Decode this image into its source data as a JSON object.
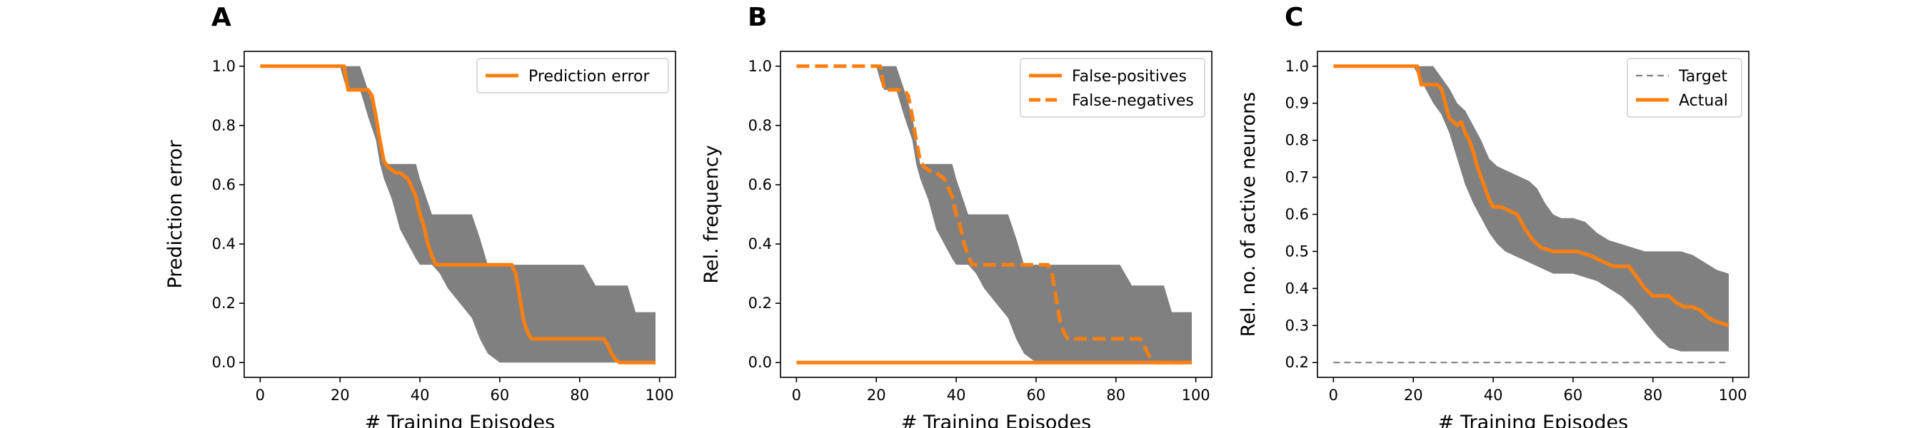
{
  "colors": {
    "actual": "#ff7f0e",
    "band": "#808080",
    "target": "#808080",
    "axes": "#000000",
    "legend_border": "#cccccc"
  },
  "chart_data": [
    {
      "panel": "A",
      "type": "line",
      "xlabel": "# Training Episodes",
      "ylabel": "Prediction error",
      "xlim": [
        -4,
        104
      ],
      "ylim": [
        -0.05,
        1.05
      ],
      "xticks": [
        0,
        20,
        40,
        60,
        80,
        100
      ],
      "yticks": [
        0.0,
        0.2,
        0.4,
        0.6,
        0.8,
        1.0
      ],
      "ytick_labels": [
        "0.0",
        "0.2",
        "0.4",
        "0.6",
        "0.8",
        "1.0"
      ],
      "grid": false,
      "legend_position": "upper right",
      "legend": [
        {
          "label": "Prediction error",
          "style": "solid",
          "color": "#ff7f0e"
        }
      ],
      "band": {
        "x": [
          0,
          20,
          21,
          22,
          25,
          27,
          29,
          30,
          31,
          33,
          35,
          37,
          39,
          40,
          41,
          43,
          45,
          47,
          50,
          53,
          55,
          57,
          60,
          62,
          64,
          66,
          68,
          70,
          72,
          75,
          78,
          81,
          84,
          86,
          88,
          90,
          92,
          94,
          96,
          98,
          99
        ],
        "upper": [
          1.0,
          1.0,
          1.0,
          1.0,
          1.0,
          0.92,
          0.83,
          0.75,
          0.67,
          0.67,
          0.67,
          0.67,
          0.67,
          0.62,
          0.58,
          0.5,
          0.5,
          0.5,
          0.5,
          0.5,
          0.42,
          0.33,
          0.33,
          0.33,
          0.33,
          0.33,
          0.33,
          0.33,
          0.33,
          0.33,
          0.33,
          0.33,
          0.26,
          0.26,
          0.26,
          0.26,
          0.26,
          0.17,
          0.17,
          0.17,
          0.17
        ],
        "lower": [
          1.0,
          1.0,
          0.95,
          0.92,
          0.92,
          0.83,
          0.75,
          0.67,
          0.62,
          0.55,
          0.45,
          0.4,
          0.35,
          0.33,
          0.33,
          0.33,
          0.3,
          0.25,
          0.2,
          0.15,
          0.08,
          0.03,
          0.0,
          0.0,
          0.0,
          0.0,
          0.0,
          0.0,
          0.0,
          0.0,
          0.0,
          0.0,
          0.0,
          0.0,
          0.0,
          0.0,
          0.0,
          0.0,
          0.0,
          0.0,
          0.0
        ]
      },
      "series": [
        {
          "name": "Prediction error",
          "style": "solid",
          "x": [
            0,
            21,
            22,
            27,
            28,
            29,
            30,
            31,
            32,
            34,
            35,
            37,
            39,
            40,
            41,
            42,
            43,
            44,
            45,
            50,
            60,
            63,
            64,
            65,
            66,
            67,
            68,
            70,
            75,
            80,
            86,
            87,
            88,
            89,
            90,
            95,
            99
          ],
          "y": [
            1.0,
            1.0,
            0.92,
            0.92,
            0.9,
            0.83,
            0.75,
            0.68,
            0.66,
            0.64,
            0.64,
            0.62,
            0.56,
            0.5,
            0.46,
            0.4,
            0.36,
            0.33,
            0.33,
            0.33,
            0.33,
            0.33,
            0.3,
            0.22,
            0.14,
            0.1,
            0.08,
            0.08,
            0.08,
            0.08,
            0.08,
            0.06,
            0.03,
            0.01,
            0.0,
            0.0,
            0.0
          ]
        }
      ]
    },
    {
      "panel": "B",
      "type": "line",
      "xlabel": "# Training Episodes",
      "ylabel": "Rel. frequency",
      "xlim": [
        -4,
        104
      ],
      "ylim": [
        -0.05,
        1.05
      ],
      "xticks": [
        0,
        20,
        40,
        60,
        80,
        100
      ],
      "yticks": [
        0.0,
        0.2,
        0.4,
        0.6,
        0.8,
        1.0
      ],
      "ytick_labels": [
        "0.0",
        "0.2",
        "0.4",
        "0.6",
        "0.8",
        "1.0"
      ],
      "grid": false,
      "legend_position": "upper right",
      "legend": [
        {
          "label": "False-positives",
          "style": "solid",
          "color": "#ff7f0e"
        },
        {
          "label": "False-negatives",
          "style": "dashed",
          "color": "#ff7f0e"
        }
      ],
      "band": {
        "x": [
          0,
          20,
          21,
          22,
          25,
          27,
          29,
          30,
          31,
          33,
          35,
          37,
          39,
          40,
          41,
          43,
          45,
          47,
          50,
          53,
          55,
          57,
          60,
          62,
          64,
          66,
          68,
          70,
          72,
          75,
          78,
          81,
          84,
          86,
          88,
          90,
          92,
          94,
          96,
          98,
          99
        ],
        "upper": [
          1.0,
          1.0,
          1.0,
          1.0,
          1.0,
          0.92,
          0.83,
          0.75,
          0.67,
          0.67,
          0.67,
          0.67,
          0.67,
          0.62,
          0.58,
          0.5,
          0.5,
          0.5,
          0.5,
          0.5,
          0.42,
          0.33,
          0.33,
          0.33,
          0.33,
          0.33,
          0.33,
          0.33,
          0.33,
          0.33,
          0.33,
          0.33,
          0.26,
          0.26,
          0.26,
          0.26,
          0.26,
          0.17,
          0.17,
          0.17,
          0.17
        ],
        "lower": [
          1.0,
          1.0,
          0.95,
          0.92,
          0.92,
          0.83,
          0.75,
          0.67,
          0.62,
          0.55,
          0.45,
          0.4,
          0.35,
          0.33,
          0.33,
          0.33,
          0.3,
          0.25,
          0.2,
          0.15,
          0.08,
          0.03,
          0.0,
          0.0,
          0.0,
          0.0,
          0.0,
          0.0,
          0.0,
          0.0,
          0.0,
          0.0,
          0.0,
          0.0,
          0.0,
          0.0,
          0.0,
          0.0,
          0.0,
          0.0,
          0.0
        ]
      },
      "series": [
        {
          "name": "False-positives",
          "style": "solid",
          "x": [
            0,
            99
          ],
          "y": [
            0.0,
            0.0
          ]
        },
        {
          "name": "False-negatives",
          "style": "dashed",
          "x": [
            0,
            21,
            22,
            27,
            28,
            29,
            30,
            31,
            32,
            34,
            35,
            37,
            39,
            40,
            41,
            42,
            43,
            44,
            45,
            50,
            60,
            63,
            64,
            65,
            66,
            67,
            68,
            70,
            75,
            80,
            86,
            87,
            88,
            89,
            90,
            95,
            99
          ],
          "y": [
            1.0,
            1.0,
            0.92,
            0.92,
            0.9,
            0.83,
            0.75,
            0.68,
            0.66,
            0.64,
            0.64,
            0.62,
            0.56,
            0.5,
            0.46,
            0.4,
            0.36,
            0.33,
            0.33,
            0.33,
            0.33,
            0.33,
            0.3,
            0.22,
            0.14,
            0.1,
            0.08,
            0.08,
            0.08,
            0.08,
            0.08,
            0.06,
            0.03,
            0.01,
            0.0,
            0.0,
            0.0
          ]
        }
      ]
    },
    {
      "panel": "C",
      "type": "line",
      "xlabel": "# Training Episodes",
      "ylabel": "Rel. no. of active neurons",
      "xlim": [
        -4,
        104
      ],
      "ylim": [
        0.16,
        1.04
      ],
      "xticks": [
        0,
        20,
        40,
        60,
        80,
        100
      ],
      "yticks": [
        0.2,
        0.3,
        0.4,
        0.5,
        0.6,
        0.7,
        0.8,
        0.9,
        1.0
      ],
      "ytick_labels": [
        "0.2",
        "0.3",
        "0.4",
        "0.5",
        "0.6",
        "0.7",
        "0.8",
        "0.9",
        "1.0"
      ],
      "grid": false,
      "legend_position": "upper right",
      "legend": [
        {
          "label": "Target",
          "style": "dashed",
          "color": "#808080"
        },
        {
          "label": "Actual",
          "style": "solid",
          "color": "#ff7f0e"
        }
      ],
      "band": {
        "x": [
          0,
          20,
          22,
          25,
          27,
          29,
          31,
          33,
          35,
          37,
          39,
          41,
          43,
          45,
          47,
          49,
          51,
          53,
          55,
          57,
          60,
          63,
          66,
          69,
          72,
          75,
          78,
          81,
          84,
          87,
          90,
          93,
          96,
          99
        ],
        "upper": [
          1.0,
          1.0,
          1.0,
          1.0,
          0.97,
          0.94,
          0.9,
          0.88,
          0.84,
          0.8,
          0.75,
          0.73,
          0.72,
          0.71,
          0.7,
          0.69,
          0.67,
          0.63,
          0.6,
          0.59,
          0.59,
          0.58,
          0.55,
          0.53,
          0.52,
          0.51,
          0.5,
          0.5,
          0.5,
          0.5,
          0.49,
          0.47,
          0.45,
          0.44
        ],
        "lower": [
          1.0,
          1.0,
          0.96,
          0.9,
          0.87,
          0.82,
          0.75,
          0.68,
          0.63,
          0.59,
          0.55,
          0.52,
          0.5,
          0.49,
          0.48,
          0.47,
          0.46,
          0.45,
          0.44,
          0.44,
          0.44,
          0.43,
          0.42,
          0.4,
          0.38,
          0.35,
          0.31,
          0.27,
          0.24,
          0.23,
          0.23,
          0.23,
          0.23,
          0.23
        ]
      },
      "series": [
        {
          "name": "Target",
          "style": "dashed",
          "x": [
            0,
            99
          ],
          "y": [
            0.2,
            0.2
          ]
        },
        {
          "name": "Actual",
          "style": "solid",
          "x": [
            0,
            21,
            22,
            24,
            26,
            27,
            28,
            29,
            30,
            31,
            32,
            33,
            34,
            35,
            36,
            37,
            38,
            39,
            40,
            42,
            44,
            46,
            48,
            50,
            52,
            55,
            58,
            61,
            64,
            66,
            68,
            70,
            72,
            74,
            76,
            78,
            80,
            82,
            84,
            86,
            88,
            90,
            92,
            94,
            96,
            99
          ],
          "y": [
            1.0,
            1.0,
            0.95,
            0.95,
            0.95,
            0.94,
            0.9,
            0.86,
            0.85,
            0.84,
            0.85,
            0.82,
            0.8,
            0.77,
            0.73,
            0.7,
            0.67,
            0.64,
            0.62,
            0.62,
            0.61,
            0.6,
            0.56,
            0.53,
            0.51,
            0.5,
            0.5,
            0.5,
            0.49,
            0.48,
            0.47,
            0.46,
            0.46,
            0.46,
            0.43,
            0.4,
            0.38,
            0.38,
            0.38,
            0.36,
            0.35,
            0.35,
            0.34,
            0.32,
            0.31,
            0.3
          ]
        }
      ]
    }
  ]
}
